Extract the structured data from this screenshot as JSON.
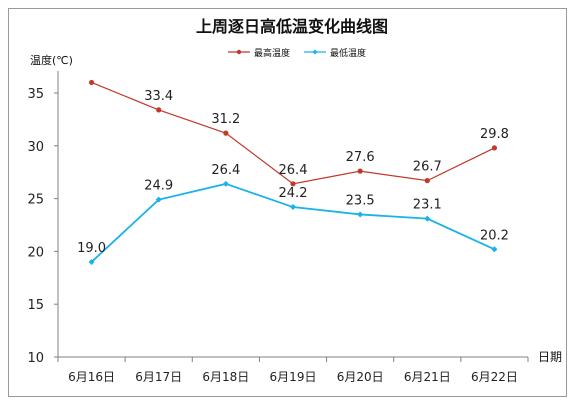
{
  "chart_data": {
    "type": "line",
    "title": "上周逐日高低温变化曲线图",
    "ylabel": "温度(℃)",
    "xlabel": "日期",
    "categories": [
      "6月16日",
      "6月17日",
      "6月18日",
      "6月19日",
      "6月20日",
      "6月21日",
      "6月22日"
    ],
    "ylim": [
      10,
      35
    ],
    "yticks": [
      10,
      15,
      20,
      25,
      30,
      35
    ],
    "grid": false,
    "legend_position": "top-center",
    "series": [
      {
        "name": "最高温度",
        "color": "#c0392b",
        "values": [
          36.0,
          33.4,
          31.2,
          26.4,
          27.6,
          26.7,
          29.8
        ],
        "labels": [
          "",
          "33.4",
          "31.2",
          "26.4",
          "27.6",
          "26.7",
          "29.8"
        ]
      },
      {
        "name": "最低温度",
        "color": "#1ab2e8",
        "values": [
          19.0,
          24.9,
          26.4,
          24.2,
          23.5,
          23.1,
          20.2
        ],
        "labels": [
          "19.0",
          "24.9",
          "26.4",
          "24.2",
          "23.5",
          "23.1",
          "20.2"
        ]
      }
    ]
  }
}
